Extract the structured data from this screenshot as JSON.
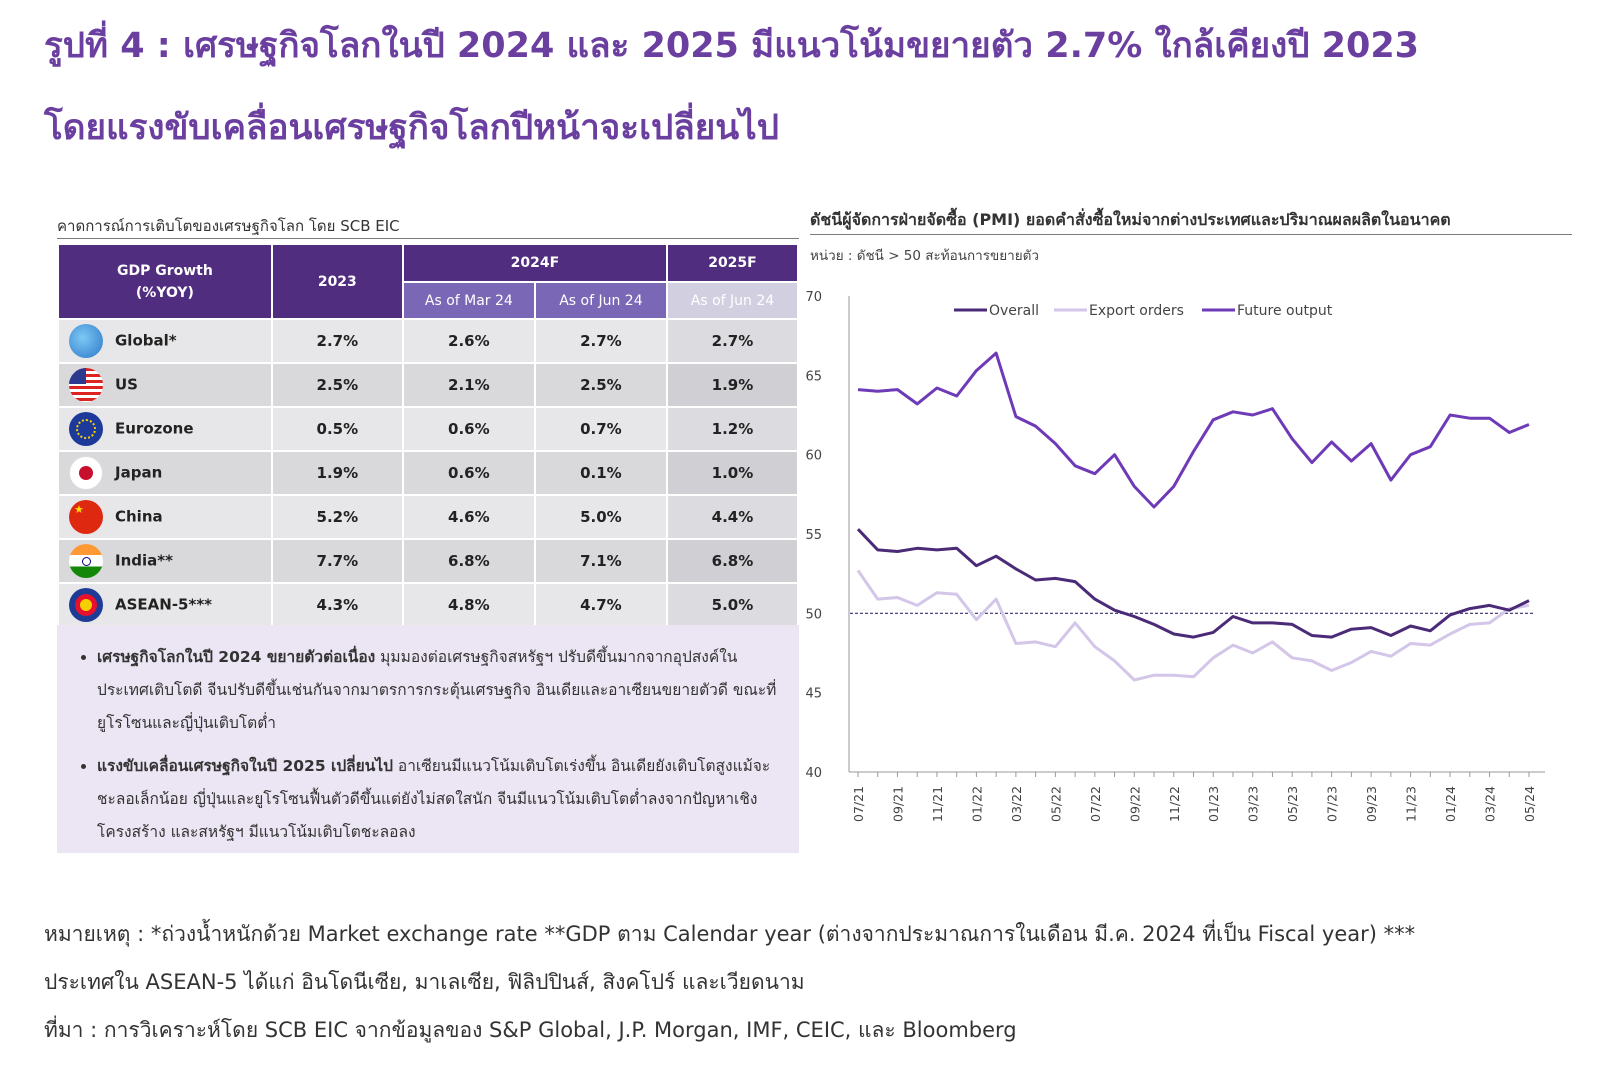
{
  "titles": {
    "line1": "รูปที่ 4 : เศรษฐกิจโลกในปี 2024 และ 2025 มีแนวโน้มขยายตัว 2.7% ใกล้เคียงปี 2023",
    "line2": "โดยแรงขับเคลื่อนเศรษฐกิจโลกปีหน้าจะเปลี่ยนไป"
  },
  "table": {
    "caption": "คาดการณ์การเติบโตของเศรษฐกิจโลก โดย SCB EIC",
    "header": {
      "gdp_line1": "GDP Growth",
      "gdp_line2": "(%YOY)",
      "year2023": "2023",
      "year2024f": "2024F",
      "year2025f": "2025F",
      "asof_mar24": "As of Mar 24",
      "asof_jun24": "As of Jun 24",
      "asof_jun24_2025": "As of Jun 24"
    },
    "rows": [
      {
        "country": "Global*",
        "flag": "globe-icon",
        "y2023": "2.7%",
        "mar24": "2.6%",
        "jun24": "2.7%",
        "y2025": "2.7%"
      },
      {
        "country": "US",
        "flag": "us-flag-icon",
        "y2023": "2.5%",
        "mar24": "2.1%",
        "jun24": "2.5%",
        "y2025": "1.9%"
      },
      {
        "country": "Eurozone",
        "flag": "eu-flag-icon",
        "y2023": "0.5%",
        "mar24": "0.6%",
        "jun24": "0.7%",
        "y2025": "1.2%"
      },
      {
        "country": "Japan",
        "flag": "japan-flag-icon",
        "y2023": "1.9%",
        "mar24": "0.6%",
        "jun24": "0.1%",
        "y2025": "1.0%"
      },
      {
        "country": "China",
        "flag": "china-flag-icon",
        "y2023": "5.2%",
        "mar24": "4.6%",
        "jun24": "5.0%",
        "y2025": "4.4%"
      },
      {
        "country": "India**",
        "flag": "india-flag-icon",
        "y2023": "7.7%",
        "mar24": "6.8%",
        "jun24": "7.1%",
        "y2025": "6.8%"
      },
      {
        "country": "ASEAN-5***",
        "flag": "asean-flag-icon",
        "y2023": "4.3%",
        "mar24": "4.8%",
        "jun24": "4.7%",
        "y2025": "5.0%"
      }
    ]
  },
  "notes": {
    "b1_lead": "เศรษฐกิจโลกในปี 2024 ขยายตัวต่อเนื่อง",
    "b1_text": " มุมมองต่อเศรษฐกิจสหรัฐฯ ปรับดีขึ้นมากจากอุปสงค์ในประเทศเติบโตดี จีนปรับดีขึ้นเช่นกันจากมาตรการกระตุ้นเศรษฐกิจ อินเดียและอาเซียนขยายตัวดี ขณะที่ยูโรโซนและญี่ปุ่นเติบโตต่ำ",
    "b2_lead": "แรงขับเคลื่อนเศรษฐกิจในปี 2025 เปลี่ยนไป",
    "b2_text": " อาเซียนมีแนวโน้มเติบโตเร่งขึ้น อินเดียยังเติบโตสูงแม้จะชะลอเล็กน้อย ญี่ปุ่นและยูโรโซนฟื้นตัวดีขึ้นแต่ยังไม่สดใสนัก จีนมีแนวโน้มเติบโตต่ำลงจากปัญหาเชิงโครงสร้าง และสหรัฐฯ มีแนวโน้มเติบโตชะลอลง"
  },
  "chart": {
    "title": "ดัชนีผู้จัดการฝ่ายจัดซื้อ (PMI) ยอดคำสั่งซื้อใหม่จากต่างประเทศและปริมาณผลผลิตในอนาคต",
    "unit": "หน่วย : ดัชนี > 50 สะท้อนการขยายตัว"
  },
  "chart_data": {
    "type": "line",
    "title": "ดัชนีผู้จัดการฝ่ายจัดซื้อ (PMI) ยอดคำสั่งซื้อใหม่จากต่างประเทศและปริมาณผลผลิตในอนาคต",
    "ylabel": "หน่วย : ดัชนี > 50 สะท้อนการขยายตัว",
    "ylim": [
      40,
      70
    ],
    "yticks": [
      40,
      45,
      50,
      55,
      60,
      65,
      70
    ],
    "reference_line": 50,
    "x": [
      "07/21",
      "08/21",
      "09/21",
      "10/21",
      "11/21",
      "12/21",
      "01/22",
      "02/22",
      "03/22",
      "04/22",
      "05/22",
      "06/22",
      "07/22",
      "08/22",
      "09/22",
      "10/22",
      "11/22",
      "12/22",
      "01/23",
      "02/23",
      "03/23",
      "04/23",
      "05/23",
      "06/23",
      "07/23",
      "08/23",
      "09/23",
      "10/23",
      "11/23",
      "12/23",
      "01/24",
      "02/24",
      "03/24",
      "04/24",
      "05/24"
    ],
    "xtick_labels": [
      "07/21",
      "09/21",
      "11/21",
      "01/22",
      "03/22",
      "05/22",
      "07/22",
      "09/22",
      "11/22",
      "01/23",
      "03/23",
      "05/23",
      "07/23",
      "09/23",
      "11/23",
      "01/24",
      "03/24",
      "05/24"
    ],
    "legend_position": "top",
    "series": [
      {
        "name": "Overall",
        "color": "#4b2a78",
        "values": [
          55.3,
          54.0,
          53.9,
          54.1,
          54.0,
          54.1,
          53.0,
          53.6,
          52.8,
          52.1,
          52.2,
          52.0,
          50.9,
          50.2,
          49.8,
          49.3,
          48.7,
          48.5,
          48.8,
          49.8,
          49.4,
          49.4,
          49.3,
          48.6,
          48.5,
          49.0,
          49.1,
          48.6,
          49.2,
          48.9,
          49.9,
          50.3,
          50.5,
          50.2,
          50.8
        ]
      },
      {
        "name": "Export orders",
        "color": "#d3c6e8",
        "values": [
          52.7,
          50.9,
          51.0,
          50.5,
          51.3,
          51.2,
          49.6,
          50.9,
          48.1,
          48.2,
          47.9,
          49.4,
          47.9,
          47.0,
          45.8,
          46.1,
          46.1,
          46.0,
          47.2,
          48.0,
          47.5,
          48.2,
          47.2,
          47.0,
          46.4,
          46.9,
          47.6,
          47.3,
          48.1,
          48.0,
          48.7,
          49.3,
          49.4,
          50.3,
          50.5
        ]
      },
      {
        "name": "Future output",
        "color": "#6f3ab7",
        "values": [
          64.1,
          64.0,
          64.1,
          63.2,
          64.2,
          63.7,
          65.3,
          66.4,
          62.4,
          61.8,
          60.7,
          59.3,
          58.8,
          60.0,
          58.0,
          56.7,
          58.0,
          60.2,
          62.2,
          62.7,
          62.5,
          62.9,
          61.0,
          59.5,
          60.8,
          59.6,
          60.7,
          58.4,
          60.0,
          60.5,
          62.5,
          62.3,
          62.3,
          61.4,
          61.9
        ]
      }
    ]
  },
  "footer": {
    "line1": "หมายเหตุ : *ถ่วงน้ำหนักด้วย Market exchange rate **GDP ตาม Calendar year (ต่างจากประมาณการในเดือน มี.ค. 2024 ที่เป็น Fiscal year) ***",
    "line2": "ประเทศใน ASEAN-5 ได้แก่ อินโดนีเซีย, มาเลเซีย, ฟิลิปปินส์, สิงคโปร์ และเวียดนาม",
    "line3": "ที่มา : การวิเคราะห์โดย SCB EIC จากข้อมูลของ S&P Global, J.P. Morgan, IMF, CEIC, และ Bloomberg"
  }
}
